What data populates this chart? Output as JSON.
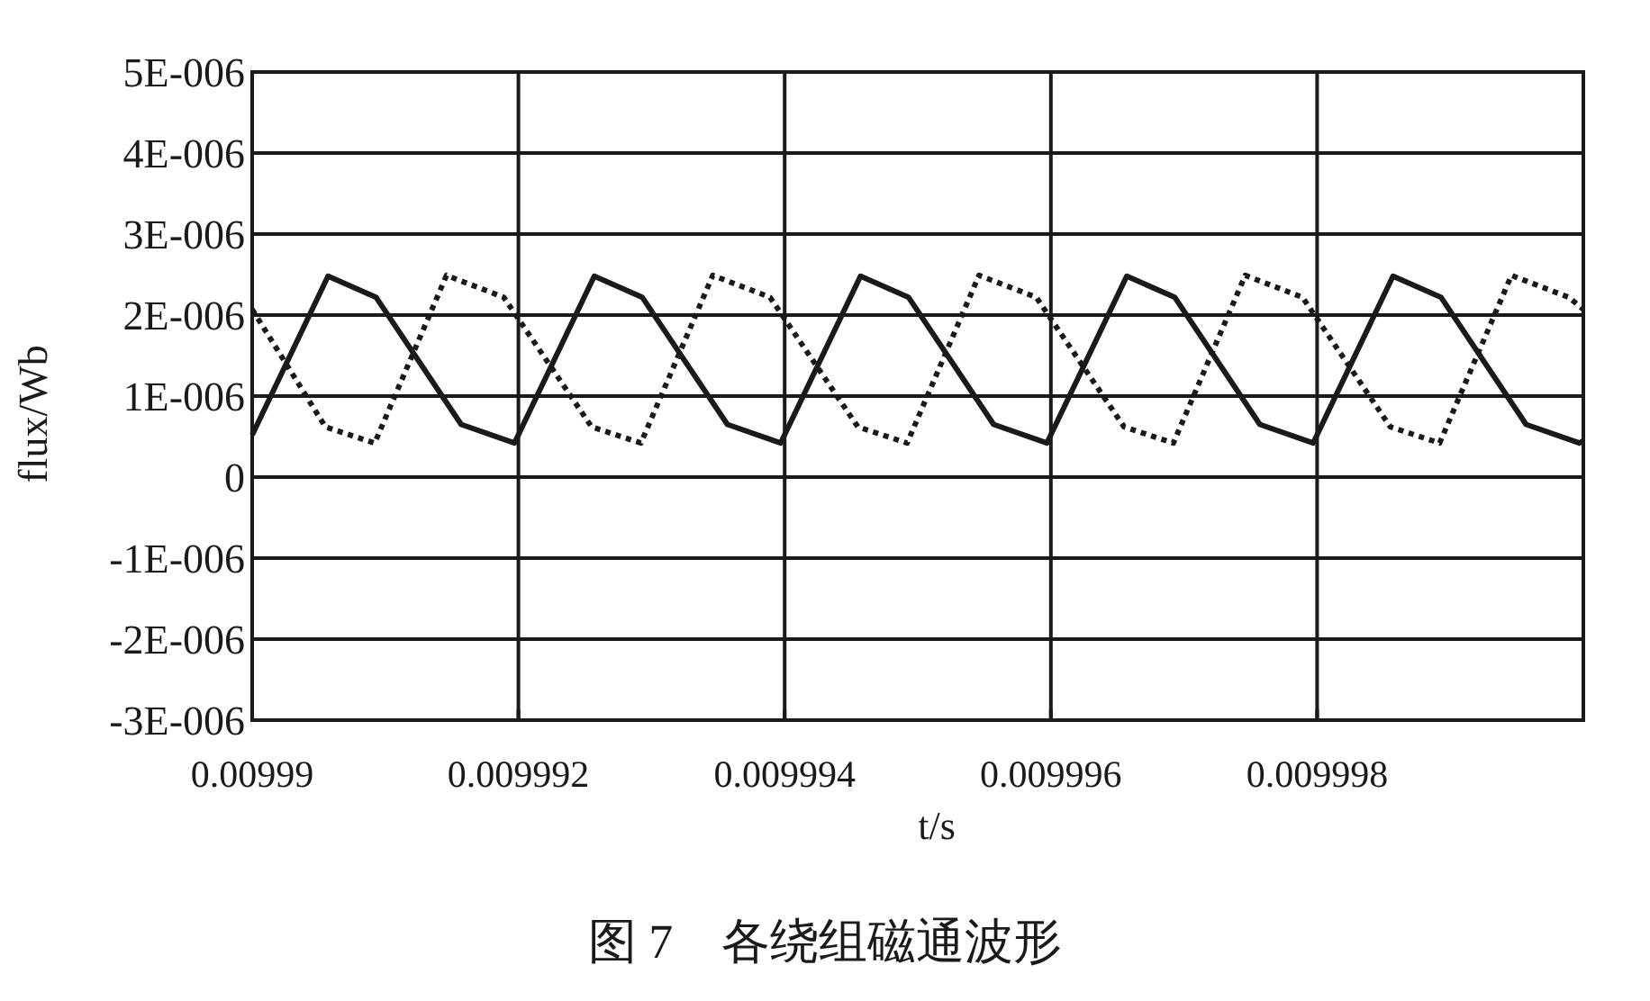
{
  "chart_data": {
    "type": "line",
    "title": "图 7　各绕组磁通波形",
    "xlabel": "t/s",
    "ylabel": "flux/Wb",
    "xlim": [
      0.00999,
      0.01
    ],
    "ylim": [
      -3e-06,
      5e-06
    ],
    "xticks": [
      0.00999,
      0.009992,
      0.009994,
      0.009996,
      0.009998
    ],
    "yticks": [
      {
        "value": -3e-06,
        "label": "-3E-006"
      },
      {
        "value": -2e-06,
        "label": "-2E-006"
      },
      {
        "value": -1e-06,
        "label": "-1E-006"
      },
      {
        "value": 0,
        "label": "0"
      },
      {
        "value": 1e-06,
        "label": "1E-006"
      },
      {
        "value": 2e-06,
        "label": "2E-006"
      },
      {
        "value": 3e-06,
        "label": "3E-006"
      },
      {
        "value": 4e-06,
        "label": "4E-006"
      },
      {
        "value": 5e-06,
        "label": "5E-006"
      }
    ],
    "grid": true,
    "series": [
      {
        "color": "#1a1a1a",
        "line_style": "solid",
        "x": [
          0.00999,
          0.00999057,
          0.00999093,
          0.00999157,
          0.00999197,
          0.00999257,
          0.00999293,
          0.00999357,
          0.00999397,
          0.00999457,
          0.00999493,
          0.00999557,
          0.00999597,
          0.00999657,
          0.00999693,
          0.00999757,
          0.00999797,
          0.00999857,
          0.00999893,
          0.00999957,
          0.00999997,
          0.01
        ],
        "values": [
          5.2e-07,
          2.48e-06,
          2.22e-06,
          6.5e-07,
          4.2e-07,
          2.48e-06,
          2.22e-06,
          6.5e-07,
          4.2e-07,
          2.48e-06,
          2.22e-06,
          6.5e-07,
          4.2e-07,
          2.48e-06,
          2.22e-06,
          6.5e-07,
          4.2e-07,
          2.48e-06,
          2.22e-06,
          6.5e-07,
          4.2e-07,
          4.5e-07
        ]
      },
      {
        "color": "#1a1a1a",
        "line_style": "dotted",
        "x": [
          0.00999,
          0.00999055,
          0.00999092,
          0.00999146,
          0.00999189,
          0.00999255,
          0.00999292,
          0.00999346,
          0.00999389,
          0.00999455,
          0.00999492,
          0.00999546,
          0.00999589,
          0.00999655,
          0.00999692,
          0.00999746,
          0.00999789,
          0.00999855,
          0.00999892,
          0.00999946,
          0.00999989,
          0.01
        ],
        "values": [
          2.07e-06,
          6.2e-07,
          4.2e-07,
          2.49e-06,
          2.22e-06,
          6.2e-07,
          4.2e-07,
          2.49e-06,
          2.22e-06,
          6.2e-07,
          4.2e-07,
          2.49e-06,
          2.22e-06,
          6.2e-07,
          4.2e-07,
          2.49e-06,
          2.22e-06,
          6.2e-07,
          4.2e-07,
          2.49e-06,
          2.22e-06,
          2.07e-06
        ]
      }
    ]
  }
}
